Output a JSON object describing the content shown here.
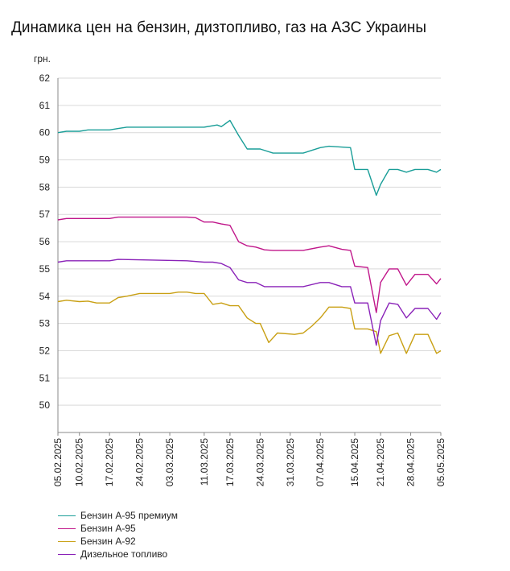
{
  "chart_data": {
    "type": "line",
    "title": "Динамика цен на бензин, дизтопливо, газ на АЗС Украины",
    "ylabel": "грн.",
    "ylim": [
      49,
      62
    ],
    "y_ticks": [
      "50",
      "51",
      "52",
      "53",
      "54",
      "55",
      "56",
      "57",
      "58",
      "59",
      "60",
      "61",
      "62"
    ],
    "x_ticks": [
      "05.02.2025",
      "10.02.2025",
      "17.02.2025",
      "24.02.2025",
      "03.03.2025",
      "11.03.2025",
      "17.03.2025",
      "24.03.2025",
      "31.03.2025",
      "07.04.2025",
      "15.04.2025",
      "21.04.2025",
      "28.04.2025",
      "05.05.2025"
    ],
    "x_range": [
      "2025-02-05",
      "2025-05-05"
    ],
    "grid": "horizontal",
    "legend_position": "bottom",
    "series": [
      {
        "name": "Бензин А-95 премиум",
        "color": "#1a9e98",
        "x": [
          "2025-02-05",
          "2025-02-07",
          "2025-02-10",
          "2025-02-12",
          "2025-02-17",
          "2025-02-19",
          "2025-02-21",
          "2025-02-24",
          "2025-03-03",
          "2025-03-07",
          "2025-03-11",
          "2025-03-14",
          "2025-03-15",
          "2025-03-17",
          "2025-03-19",
          "2025-03-21",
          "2025-03-24",
          "2025-03-27",
          "2025-04-03",
          "2025-04-07",
          "2025-04-09",
          "2025-04-14",
          "2025-04-15",
          "2025-04-18",
          "2025-04-20",
          "2025-04-21",
          "2025-04-23",
          "2025-04-25",
          "2025-04-27",
          "2025-04-29",
          "2025-05-02",
          "2025-05-04",
          "2025-05-05"
        ],
        "values": [
          60.0,
          60.05,
          60.05,
          60.1,
          60.1,
          60.15,
          60.2,
          60.2,
          60.2,
          60.2,
          60.2,
          60.28,
          60.22,
          60.45,
          59.9,
          59.4,
          59.4,
          59.25,
          59.25,
          59.45,
          59.5,
          59.45,
          58.65,
          58.65,
          57.7,
          58.1,
          58.65,
          58.65,
          58.55,
          58.65,
          58.65,
          58.55,
          58.65
        ]
      },
      {
        "name": "Бензин А-95",
        "color": "#c0168a",
        "x": [
          "2025-02-05",
          "2025-02-07",
          "2025-02-17",
          "2025-02-19",
          "2025-03-07",
          "2025-03-09",
          "2025-03-11",
          "2025-03-13",
          "2025-03-15",
          "2025-03-17",
          "2025-03-19",
          "2025-03-21",
          "2025-03-23",
          "2025-03-25",
          "2025-03-27",
          "2025-04-03",
          "2025-04-07",
          "2025-04-09",
          "2025-04-12",
          "2025-04-14",
          "2025-04-15",
          "2025-04-18",
          "2025-04-20",
          "2025-04-21",
          "2025-04-23",
          "2025-04-25",
          "2025-04-27",
          "2025-04-29",
          "2025-05-02",
          "2025-05-04",
          "2025-05-05"
        ],
        "values": [
          56.8,
          56.85,
          56.85,
          56.9,
          56.9,
          56.88,
          56.72,
          56.72,
          56.65,
          56.6,
          56.0,
          55.85,
          55.8,
          55.7,
          55.68,
          55.68,
          55.8,
          55.85,
          55.72,
          55.68,
          55.1,
          55.05,
          53.4,
          54.5,
          55.0,
          55.0,
          54.4,
          54.8,
          54.8,
          54.45,
          54.65
        ]
      },
      {
        "name": "Бензин А-92",
        "color": "#c9a014",
        "x": [
          "2025-02-05",
          "2025-02-07",
          "2025-02-10",
          "2025-02-12",
          "2025-02-14",
          "2025-02-17",
          "2025-02-19",
          "2025-02-21",
          "2025-02-24",
          "2025-03-03",
          "2025-03-05",
          "2025-03-07",
          "2025-03-09",
          "2025-03-11",
          "2025-03-13",
          "2025-03-15",
          "2025-03-17",
          "2025-03-19",
          "2025-03-21",
          "2025-03-23",
          "2025-03-24",
          "2025-03-26",
          "2025-03-28",
          "2025-04-01",
          "2025-04-03",
          "2025-04-05",
          "2025-04-07",
          "2025-04-09",
          "2025-04-12",
          "2025-04-14",
          "2025-04-15",
          "2025-04-18",
          "2025-04-20",
          "2025-04-21",
          "2025-04-23",
          "2025-04-25",
          "2025-04-27",
          "2025-04-29",
          "2025-05-02",
          "2025-05-04",
          "2025-05-05"
        ],
        "values": [
          53.8,
          53.85,
          53.8,
          53.82,
          53.75,
          53.75,
          53.95,
          54.0,
          54.1,
          54.1,
          54.15,
          54.15,
          54.1,
          54.1,
          53.7,
          53.75,
          53.65,
          53.65,
          53.2,
          53.0,
          53.0,
          52.3,
          52.65,
          52.6,
          52.65,
          52.9,
          53.2,
          53.6,
          53.6,
          53.55,
          52.8,
          52.8,
          52.7,
          51.9,
          52.55,
          52.65,
          51.9,
          52.6,
          52.6,
          51.9,
          52.0
        ]
      },
      {
        "name": "Дизельное топливо",
        "color": "#8a22b8",
        "x": [
          "2025-02-05",
          "2025-02-07",
          "2025-02-17",
          "2025-02-19",
          "2025-03-07",
          "2025-03-11",
          "2025-03-13",
          "2025-03-15",
          "2025-03-17",
          "2025-03-19",
          "2025-03-21",
          "2025-03-23",
          "2025-03-25",
          "2025-04-03",
          "2025-04-07",
          "2025-04-09",
          "2025-04-12",
          "2025-04-14",
          "2025-04-15",
          "2025-04-18",
          "2025-04-20",
          "2025-04-21",
          "2025-04-23",
          "2025-04-25",
          "2025-04-27",
          "2025-04-29",
          "2025-05-02",
          "2025-05-04",
          "2025-05-05"
        ],
        "values": [
          55.25,
          55.3,
          55.3,
          55.35,
          55.3,
          55.25,
          55.25,
          55.2,
          55.05,
          54.6,
          54.5,
          54.5,
          54.35,
          54.35,
          54.5,
          54.5,
          54.35,
          54.35,
          53.75,
          53.75,
          52.2,
          53.1,
          53.75,
          53.7,
          53.2,
          53.55,
          53.55,
          53.15,
          53.4
        ]
      }
    ]
  }
}
